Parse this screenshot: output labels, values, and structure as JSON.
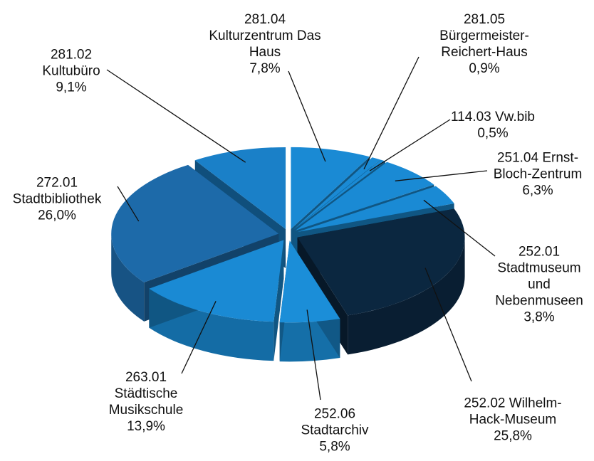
{
  "chart_data": {
    "type": "pie",
    "categories": [
      "281.04 Kulturzentrum Das Haus",
      "281.05 Bürgermeister-Reichert-Haus",
      "114.03 Vw.bib",
      "251.04 Ernst-Bloch-Zentrum",
      "252.01 Stadtmuseum und Nebenmuseen",
      "252.02 Wilhelm-Hack-Museum",
      "252.06 Stadtarchiv",
      "263.01 Städtische Musikschule",
      "272.01 Stadtbibliothek",
      "281.02 Kultubüro"
    ],
    "values": [
      7.8,
      0.9,
      0.5,
      6.3,
      3.8,
      25.8,
      5.8,
      13.9,
      26.0,
      9.1
    ],
    "value_labels": [
      "7,8%",
      "0,9%",
      "0,5%",
      "6,3%",
      "3,8%",
      "25,8%",
      "5,8%",
      "13,9%",
      "26,0%",
      "9,1%"
    ],
    "colors": [
      "#1a8ad4",
      "#1a8ad4",
      "#1a8ad4",
      "#1a8ad4",
      "#1a8ad4",
      "#0b2740",
      "#1b8ed8",
      "#1a8ad4",
      "#1d6aa9",
      "#1a80c8"
    ]
  }
}
